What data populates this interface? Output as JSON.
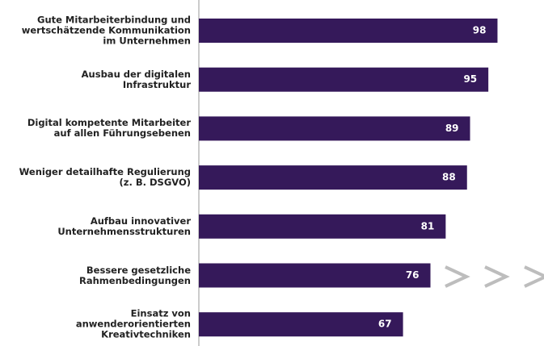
{
  "chart_data": {
    "type": "bar",
    "orientation": "horizontal",
    "categories": [
      "Gute Mitarbeiterbindung und\nwertschätzende Kommunikation\nim Unternehmen",
      "Ausbau der digitalen\nInfrastruktur",
      "Digital kompetente Mitarbeiter\nauf allen Führungsebenen",
      "Weniger detailhafte Regulierung\n(z. B. DSGVO)",
      "Aufbau innovativer\nUnternehmensstrukturen",
      "Bessere gesetzliche\nRahmenbedingungen",
      "Einsatz von\nanwenderorientierten\nKreativtechniken"
    ],
    "values": [
      98,
      95,
      89,
      88,
      81,
      76,
      67
    ],
    "color": "#35195a",
    "xlim": [
      0,
      100
    ]
  }
}
